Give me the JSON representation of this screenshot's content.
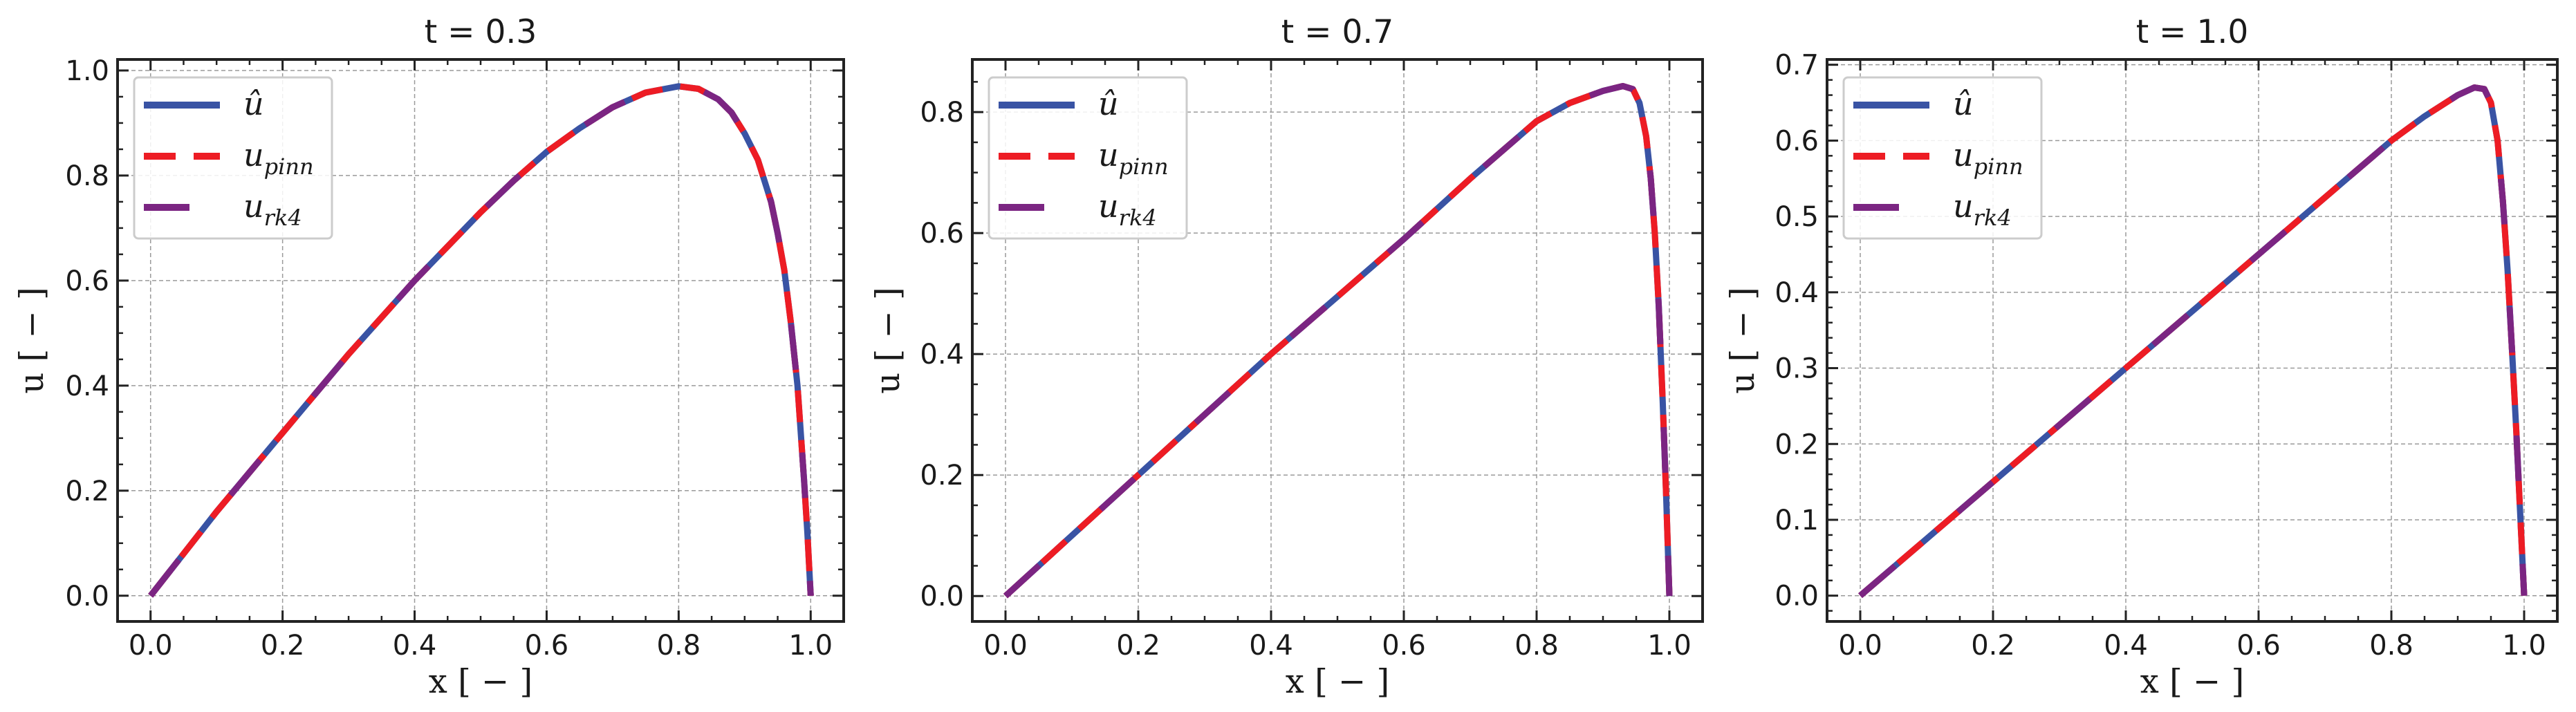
{
  "colors": {
    "u_hat": "#3953a4",
    "u_pinn": "#ed1c24",
    "u_rk4": "#7b2582",
    "grid": "#9a9a9a",
    "axes": "#222222"
  },
  "chart_data": [
    {
      "type": "line",
      "title": "t = 0.3",
      "xlabel": "x [ − ]",
      "ylabel": "u [ − ]",
      "xlim": [
        -0.05,
        1.05
      ],
      "ylim": [
        -0.049,
        1.021
      ],
      "xticks": [
        0.0,
        0.2,
        0.4,
        0.6,
        0.8,
        1.0
      ],
      "xtick_labels": [
        "0.0",
        "0.2",
        "0.4",
        "0.6",
        "0.8",
        "1.0"
      ],
      "xminor": 0.05,
      "yticks": [
        0.0,
        0.2,
        0.4,
        0.6,
        0.8,
        1.0
      ],
      "ytick_labels": [
        "0.0",
        "0.2",
        "0.4",
        "0.6",
        "0.8",
        "1.0"
      ],
      "yminor": 0.05,
      "grid": true,
      "legend": "upper-left",
      "x": [
        0,
        0.05,
        0.1,
        0.15,
        0.2,
        0.25,
        0.3,
        0.35,
        0.4,
        0.45,
        0.5,
        0.55,
        0.6,
        0.65,
        0.7,
        0.75,
        0.8,
        0.83,
        0.86,
        0.88,
        0.9,
        0.92,
        0.94,
        0.95,
        0.96,
        0.97,
        0.98,
        0.99,
        0.995,
        1.0
      ],
      "series": [
        {
          "name": "û",
          "style": "solid",
          "values": [
            0,
            0.08,
            0.16,
            0.235,
            0.31,
            0.385,
            0.46,
            0.53,
            0.6,
            0.665,
            0.73,
            0.79,
            0.845,
            0.89,
            0.93,
            0.958,
            0.97,
            0.965,
            0.945,
            0.92,
            0.88,
            0.83,
            0.75,
            0.69,
            0.62,
            0.52,
            0.4,
            0.22,
            0.12,
            0
          ]
        },
        {
          "name": "u_pinn",
          "style": "dashed",
          "values": [
            0,
            0.08,
            0.16,
            0.235,
            0.31,
            0.385,
            0.46,
            0.53,
            0.6,
            0.665,
            0.73,
            0.79,
            0.845,
            0.89,
            0.93,
            0.958,
            0.97,
            0.965,
            0.945,
            0.92,
            0.88,
            0.83,
            0.75,
            0.69,
            0.62,
            0.52,
            0.4,
            0.22,
            0.12,
            0
          ]
        },
        {
          "name": "u_rk4",
          "style": "long-dashed",
          "values": [
            0,
            0.08,
            0.16,
            0.235,
            0.31,
            0.385,
            0.46,
            0.53,
            0.6,
            0.665,
            0.73,
            0.79,
            0.845,
            0.89,
            0.93,
            0.958,
            0.97,
            0.965,
            0.945,
            0.92,
            0.88,
            0.83,
            0.75,
            0.69,
            0.62,
            0.52,
            0.4,
            0.22,
            0.12,
            0
          ]
        }
      ]
    },
    {
      "type": "line",
      "title": "t = 0.7",
      "xlabel": "x [ − ]",
      "ylabel": "u [ − ]",
      "xlim": [
        -0.05,
        1.05
      ],
      "ylim": [
        -0.042,
        0.887
      ],
      "xticks": [
        0.0,
        0.2,
        0.4,
        0.6,
        0.8,
        1.0
      ],
      "xtick_labels": [
        "0.0",
        "0.2",
        "0.4",
        "0.6",
        "0.8",
        "1.0"
      ],
      "xminor": 0.05,
      "yticks": [
        0.0,
        0.2,
        0.4,
        0.6,
        0.8
      ],
      "ytick_labels": [
        "0.0",
        "0.2",
        "0.4",
        "0.6",
        "0.8"
      ],
      "yminor": 0.05,
      "grid": true,
      "legend": "upper-left",
      "x": [
        0,
        0.1,
        0.2,
        0.3,
        0.4,
        0.5,
        0.6,
        0.7,
        0.8,
        0.85,
        0.9,
        0.93,
        0.945,
        0.955,
        0.965,
        0.972,
        0.978,
        0.984,
        0.99,
        0.995,
        1.0
      ],
      "series": [
        {
          "name": "û",
          "style": "solid",
          "values": [
            0,
            0.1,
            0.2,
            0.3,
            0.4,
            0.495,
            0.59,
            0.69,
            0.785,
            0.815,
            0.835,
            0.843,
            0.838,
            0.815,
            0.76,
            0.69,
            0.6,
            0.48,
            0.32,
            0.17,
            0
          ]
        },
        {
          "name": "u_pinn",
          "style": "dashed",
          "values": [
            0,
            0.1,
            0.2,
            0.3,
            0.4,
            0.495,
            0.59,
            0.69,
            0.785,
            0.815,
            0.835,
            0.843,
            0.838,
            0.815,
            0.76,
            0.69,
            0.6,
            0.48,
            0.32,
            0.17,
            0
          ]
        },
        {
          "name": "u_rk4",
          "style": "long-dashed",
          "values": [
            0,
            0.1,
            0.2,
            0.3,
            0.4,
            0.495,
            0.59,
            0.69,
            0.785,
            0.815,
            0.835,
            0.843,
            0.838,
            0.815,
            0.76,
            0.69,
            0.6,
            0.48,
            0.32,
            0.17,
            0
          ]
        }
      ]
    },
    {
      "type": "line",
      "title": "t = 1.0",
      "xlabel": "x [ − ]",
      "ylabel": "u [ − ]",
      "xlim": [
        -0.05,
        1.05
      ],
      "ylim": [
        -0.034,
        0.707
      ],
      "xticks": [
        0.0,
        0.2,
        0.4,
        0.6,
        0.8,
        1.0
      ],
      "xtick_labels": [
        "0.0",
        "0.2",
        "0.4",
        "0.6",
        "0.8",
        "1.0"
      ],
      "xminor": 0.05,
      "yticks": [
        0.0,
        0.1,
        0.2,
        0.3,
        0.4,
        0.5,
        0.6,
        0.7
      ],
      "ytick_labels": [
        "0.0",
        "0.1",
        "0.2",
        "0.3",
        "0.4",
        "0.5",
        "0.6",
        "0.7"
      ],
      "yminor": 0.02,
      "grid": true,
      "legend": "upper-left",
      "x": [
        0,
        0.1,
        0.2,
        0.3,
        0.4,
        0.5,
        0.6,
        0.7,
        0.8,
        0.85,
        0.9,
        0.925,
        0.94,
        0.95,
        0.96,
        0.968,
        0.975,
        0.982,
        0.988,
        0.994,
        1.0
      ],
      "series": [
        {
          "name": "û",
          "style": "solid",
          "values": [
            0,
            0.075,
            0.15,
            0.225,
            0.3,
            0.375,
            0.45,
            0.525,
            0.6,
            0.632,
            0.66,
            0.67,
            0.668,
            0.65,
            0.6,
            0.52,
            0.43,
            0.32,
            0.22,
            0.11,
            0
          ]
        },
        {
          "name": "u_pinn",
          "style": "dashed",
          "values": [
            0,
            0.075,
            0.15,
            0.225,
            0.3,
            0.375,
            0.45,
            0.525,
            0.6,
            0.632,
            0.66,
            0.67,
            0.668,
            0.65,
            0.6,
            0.52,
            0.43,
            0.32,
            0.22,
            0.11,
            0
          ]
        },
        {
          "name": "u_rk4",
          "style": "long-dashed",
          "values": [
            0,
            0.075,
            0.15,
            0.225,
            0.3,
            0.375,
            0.45,
            0.525,
            0.6,
            0.632,
            0.66,
            0.67,
            0.668,
            0.65,
            0.6,
            0.52,
            0.43,
            0.32,
            0.22,
            0.11,
            0
          ]
        }
      ]
    }
  ],
  "legend": {
    "items": [
      {
        "base": "û",
        "sub": ""
      },
      {
        "base": "u",
        "sub": "pinn"
      },
      {
        "base": "u",
        "sub": "rk4"
      }
    ]
  }
}
